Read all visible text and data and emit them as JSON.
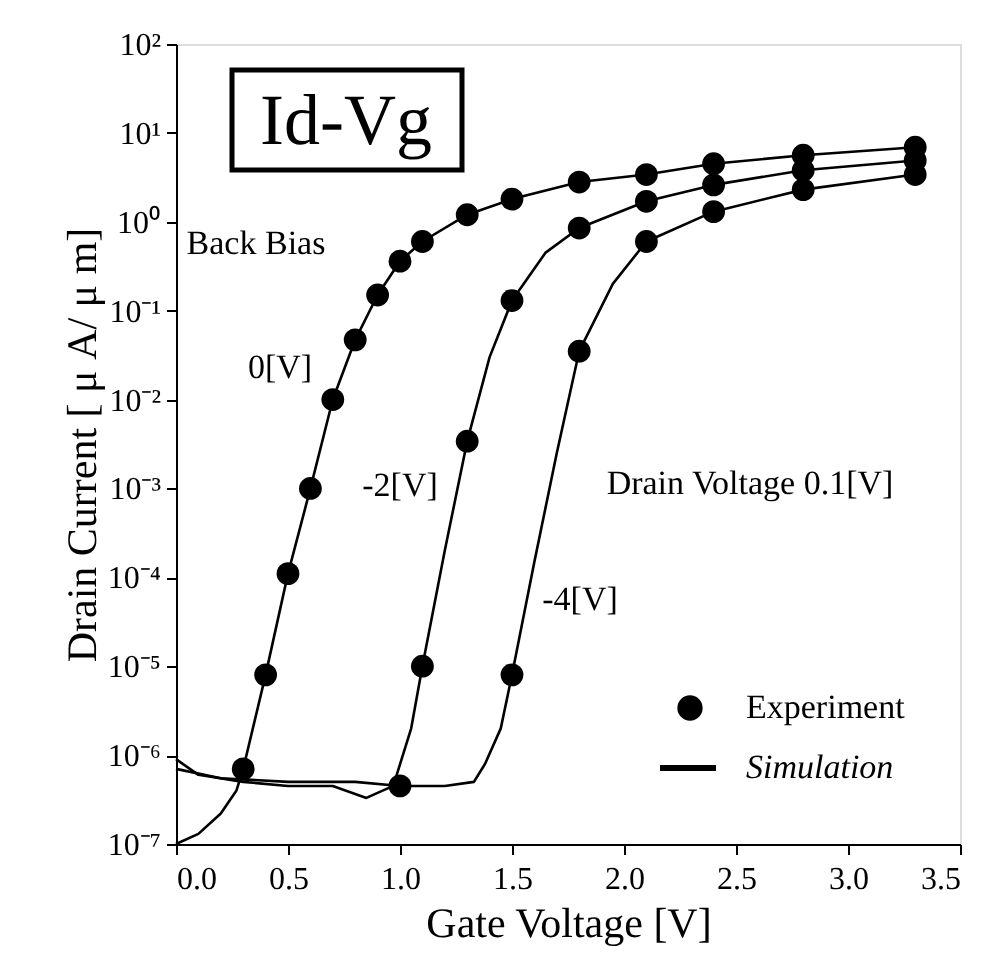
{
  "chart_data": {
    "type": "line",
    "title": "Id-Vg",
    "xlabel": "Gate Voltage [V]",
    "ylabel": "Drain Current [ μ A/ μ m]",
    "log": "y",
    "xlim": [
      0,
      3.5
    ],
    "xticks": [
      {
        "value": 0,
        "label": "0.0"
      },
      {
        "value": 0.5,
        "label": "0.5"
      },
      {
        "value": 1,
        "label": "1.0"
      },
      {
        "value": 1.5,
        "label": "1.5"
      },
      {
        "value": 2,
        "label": "2.0"
      },
      {
        "value": 2.5,
        "label": "2.5"
      },
      {
        "value": 3,
        "label": "3.0"
      },
      {
        "value": 3.5,
        "label": "3.5"
      }
    ],
    "ylim": [
      1e-07,
      100
    ],
    "yticks": [
      {
        "value": 1e-07,
        "label": "10⁻⁷"
      },
      {
        "value": 1e-06,
        "label": "10⁻⁶"
      },
      {
        "value": 1e-05,
        "label": "10⁻⁵"
      },
      {
        "value": 0.0001,
        "label": "10⁻⁴"
      },
      {
        "value": 0.001,
        "label": "10⁻³"
      },
      {
        "value": 0.01,
        "label": "10⁻²"
      },
      {
        "value": 0.1,
        "label": "10⁻¹"
      },
      {
        "value": 1,
        "label": "10⁰"
      },
      {
        "value": 10,
        "label": "10¹"
      },
      {
        "value": 100,
        "label": "10²"
      }
    ],
    "grid": false,
    "legend": "bottom right",
    "series": [
      {
        "name": "Experiment",
        "type": "scatter",
        "marker": "circle",
        "color": "#000000",
        "x": [
          0.3,
          0.4,
          0.5,
          0.6,
          0.7,
          0.8,
          0.9,
          1.0,
          1.1,
          1.3,
          1.5,
          1.8,
          2.1,
          2.4,
          2.8,
          3.3,
          1.0,
          1.1,
          1.3,
          1.5,
          1.8,
          2.1,
          2.4,
          2.8,
          3.3,
          1.5,
          1.8,
          2.1,
          2.4,
          2.8,
          3.3
        ],
        "values": [
          7e-07,
          8e-06,
          0.00011,
          0.001,
          0.01,
          0.047,
          0.15,
          0.36,
          0.6,
          1.2,
          1.8,
          2.8,
          3.4,
          4.5,
          5.6,
          6.9,
          4.5e-07,
          1e-05,
          0.0034,
          0.13,
          0.85,
          1.7,
          2.6,
          3.8,
          4.9,
          8e-06,
          0.035,
          0.6,
          1.3,
          2.3,
          3.4
        ]
      },
      {
        "name": "Simulation",
        "type": "line",
        "line_style": "solid",
        "color": "#000000",
        "x": [
          0,
          0.1,
          0.2,
          0.27,
          0.3,
          0.4,
          0.5,
          0.6,
          0.7,
          0.8,
          0.9,
          1.0,
          1.1,
          1.3,
          1.5,
          1.8,
          2.1,
          2.4,
          2.8,
          3.3
        ],
        "values": [
          1e-07,
          1.3e-07,
          2.2e-07,
          4e-07,
          7e-07,
          8e-06,
          0.00011,
          0.001,
          0.01,
          0.047,
          0.15,
          0.36,
          0.6,
          1.2,
          1.8,
          2.8,
          3.4,
          4.5,
          5.6,
          6.9
        ]
      },
      {
        "line_style": "solid",
        "color": "#000000",
        "x": [
          0,
          0.1,
          0.3,
          0.5,
          0.7,
          0.85,
          0.97,
          1.05,
          1.1,
          1.2,
          1.3,
          1.4,
          1.5,
          1.65,
          1.8,
          2.1,
          2.4,
          2.8,
          3.3
        ],
        "values": [
          9e-07,
          6e-07,
          5e-07,
          4.5e-07,
          4.5e-07,
          3.3e-07,
          4.5e-07,
          2e-06,
          1e-05,
          0.0002,
          0.0034,
          0.03,
          0.13,
          0.45,
          0.85,
          1.7,
          2.6,
          3.8,
          4.9
        ]
      },
      {
        "line_style": "solid",
        "color": "#000000",
        "x": [
          0,
          0.2,
          0.5,
          0.8,
          1.0,
          1.2,
          1.33,
          1.38,
          1.45,
          1.5,
          1.6,
          1.7,
          1.8,
          1.95,
          2.1,
          2.4,
          2.8,
          3.3
        ],
        "values": [
          7e-07,
          5.5e-07,
          5e-07,
          5e-07,
          4.5e-07,
          4.5e-07,
          5e-07,
          8e-07,
          2e-06,
          8e-06,
          0.00015,
          0.0025,
          0.035,
          0.2,
          0.6,
          1.3,
          2.3,
          3.4
        ]
      }
    ],
    "annotations": [
      "Back Bias",
      "0[V]",
      "-2[V]",
      "-4[V]",
      "Drain Voltage 0.1[V]"
    ]
  }
}
